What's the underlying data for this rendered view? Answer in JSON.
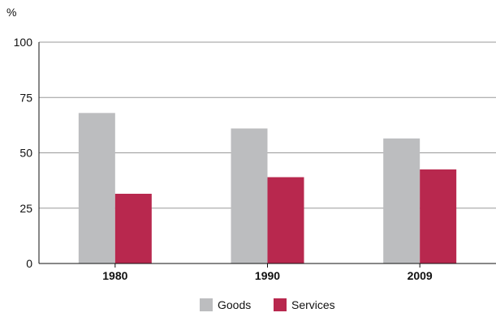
{
  "chart_data": {
    "type": "bar",
    "ylabel": "%",
    "categories": [
      "1980",
      "1990",
      "2009"
    ],
    "series": [
      {
        "name": "Goods",
        "values": [
          68,
          61,
          56.5
        ],
        "color": "#bcbdbf"
      },
      {
        "name": "Services",
        "values": [
          31.5,
          39,
          42.5
        ],
        "color": "#b8284e"
      }
    ],
    "ylim": [
      0,
      100
    ],
    "yticks": [
      0,
      25,
      50,
      75,
      100
    ],
    "grid": true,
    "legend_position": "bottom-center"
  }
}
